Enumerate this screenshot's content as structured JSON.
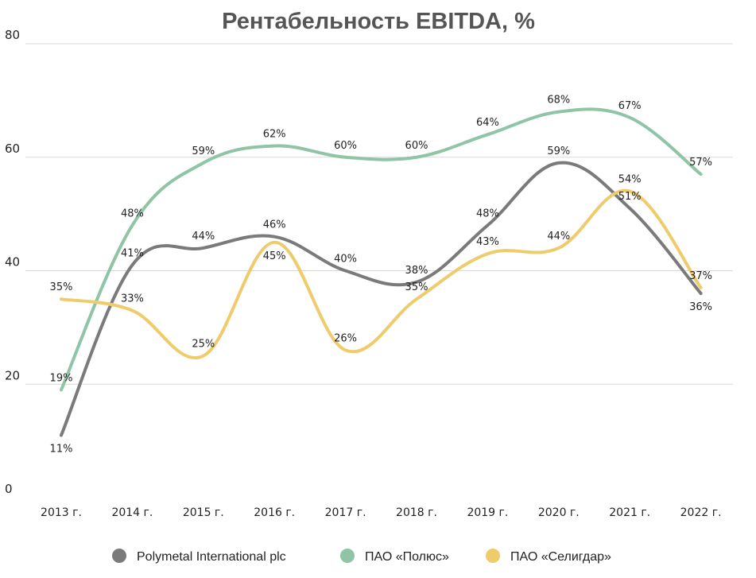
{
  "chart_data": {
    "type": "line",
    "title": "Рентабельность EBITDA, %",
    "xlabel": "",
    "ylabel": "",
    "ylim": [
      0,
      80
    ],
    "yticks": [
      0,
      20,
      40,
      60,
      80
    ],
    "grid": true,
    "smooth": true,
    "legend_position": "bottom",
    "categories": [
      "2013 г.",
      "2014 г.",
      "2015 г.",
      "2016 г.",
      "2017 г.",
      "2018 г.",
      "2019 г.",
      "2020 г.",
      "2021 г.",
      "2022 г."
    ],
    "series": [
      {
        "name": "Polymetal International plc",
        "color": "#7a7a7a",
        "values": [
          11,
          41,
          44,
          46,
          40,
          38,
          48,
          59,
          51,
          36
        ],
        "labels": [
          "11%",
          "41%",
          "44%",
          "46%",
          "40%",
          "38%",
          "48%",
          "59%",
          "51%",
          "36%"
        ],
        "label_pos": [
          "below",
          "above",
          "above",
          "above",
          "above",
          "above",
          "above",
          "above",
          "above",
          "below"
        ]
      },
      {
        "name": "ПАО «Полюс»",
        "color": "#8fc4a6",
        "values": [
          19,
          48,
          59,
          62,
          60,
          60,
          64,
          68,
          67,
          57
        ],
        "labels": [
          "19%",
          "48%",
          "59%",
          "62%",
          "60%",
          "60%",
          "64%",
          "68%",
          "67%",
          "57%"
        ],
        "label_pos": [
          "above",
          "above",
          "above",
          "above",
          "above",
          "above",
          "above",
          "above",
          "above",
          "above"
        ]
      },
      {
        "name": "ПАО «Селигдар»",
        "color": "#eecb6b",
        "values": [
          35,
          33,
          25,
          45,
          26,
          35,
          43,
          44,
          54,
          37
        ],
        "labels": [
          "35%",
          "33%",
          "25%",
          "45%",
          "26%",
          "35%",
          "43%",
          "44%",
          "54%",
          "37%"
        ],
        "label_pos": [
          "above",
          "above",
          "above",
          "below",
          "above",
          "above",
          "above",
          "above",
          "above",
          "above"
        ]
      }
    ]
  }
}
